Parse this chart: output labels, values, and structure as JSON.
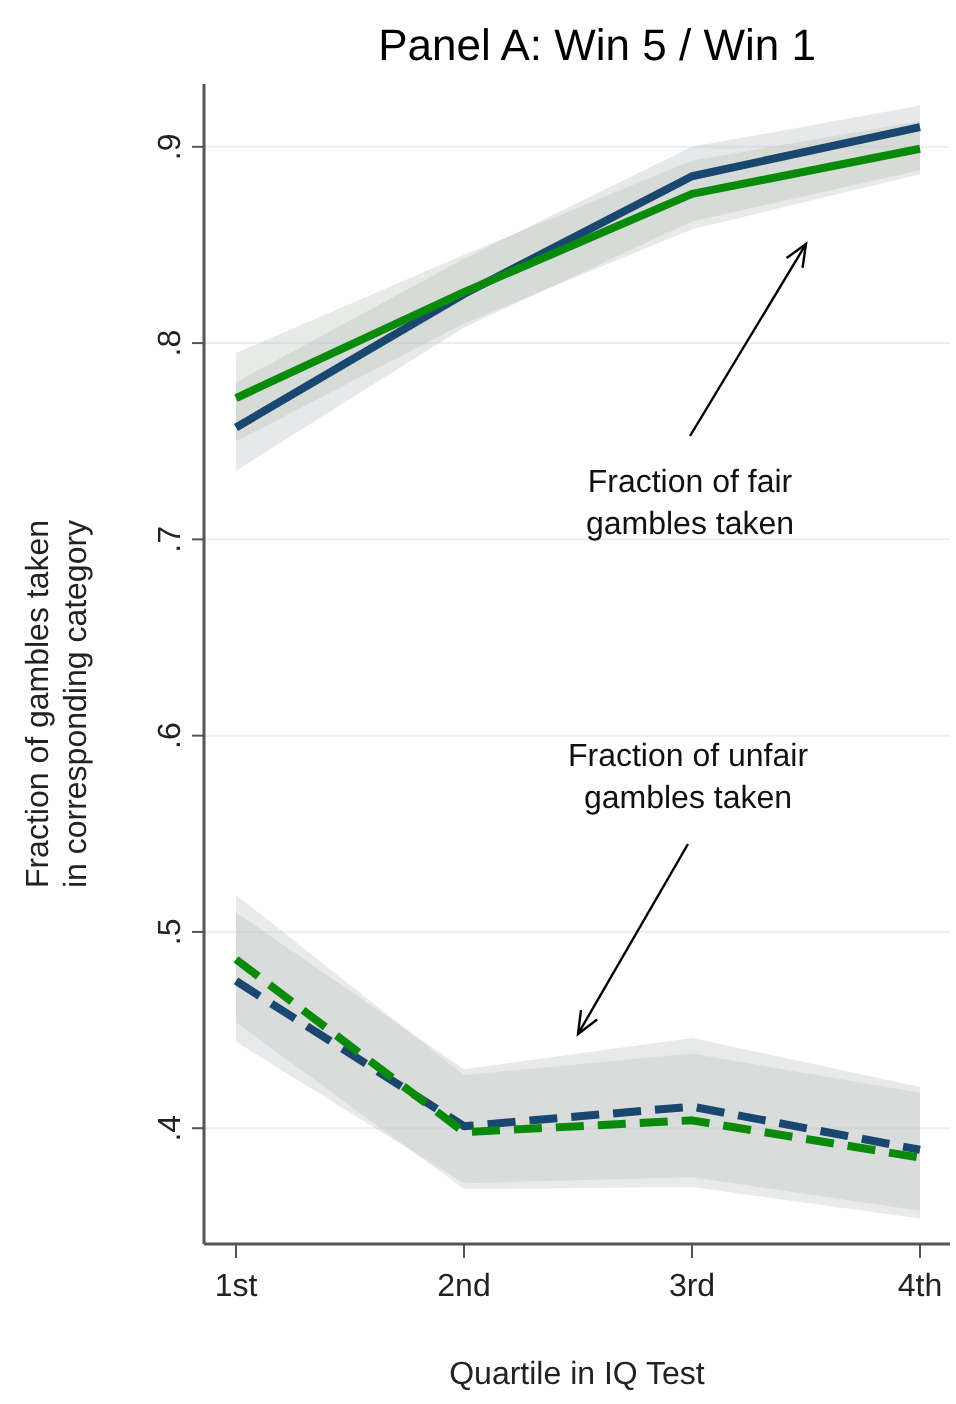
{
  "chart_data": {
    "type": "line",
    "title": "Panel A: Win 5 / Win 1",
    "xlabel": "Quartile in IQ Test",
    "ylabel": "Fraction of gambles taken\nin corresponding category",
    "categories": [
      "1st",
      "2nd",
      "3rd",
      "4th"
    ],
    "series": [
      {
        "color": "#1a476f",
        "line_style": "solid",
        "values": [
          0.757,
          0.825,
          0.885,
          0.91
        ],
        "lower": [
          0.735,
          0.808,
          0.862,
          0.888
        ],
        "upper": [
          0.78,
          0.843,
          0.9,
          0.921
        ]
      },
      {
        "color": "#0a8a0a",
        "line_style": "solid",
        "values": [
          0.772,
          0.826,
          0.876,
          0.899
        ],
        "lower": [
          0.75,
          0.81,
          0.858,
          0.886
        ],
        "upper": [
          0.795,
          0.845,
          0.893,
          0.913
        ]
      },
      {
        "color": "#1a476f",
        "line_style": "dashed",
        "values": [
          0.475,
          0.401,
          0.411,
          0.389
        ],
        "lower": [
          0.444,
          0.372,
          0.375,
          0.358
        ],
        "upper": [
          0.51,
          0.43,
          0.446,
          0.421
        ]
      },
      {
        "color": "#0a8a0a",
        "line_style": "dashed",
        "values": [
          0.486,
          0.398,
          0.404,
          0.385
        ],
        "lower": [
          0.454,
          0.369,
          0.37,
          0.354
        ],
        "upper": [
          0.519,
          0.427,
          0.438,
          0.418
        ]
      }
    ],
    "ylim": [
      0.341,
      0.932
    ],
    "yticks": [
      {
        "value": 0.4,
        "label": ".4"
      },
      {
        "value": 0.5,
        "label": ".5"
      },
      {
        "value": 0.6,
        "label": ".6"
      },
      {
        "value": 0.7,
        "label": ".7"
      },
      {
        "value": 0.8,
        "label": ".8"
      },
      {
        "value": 0.9,
        "label": ".9"
      }
    ],
    "grid": "y",
    "marker": "none",
    "annotations": [
      "Fraction of fair\ngambles taken",
      "Fraction of unfair\ngambles taken"
    ]
  }
}
